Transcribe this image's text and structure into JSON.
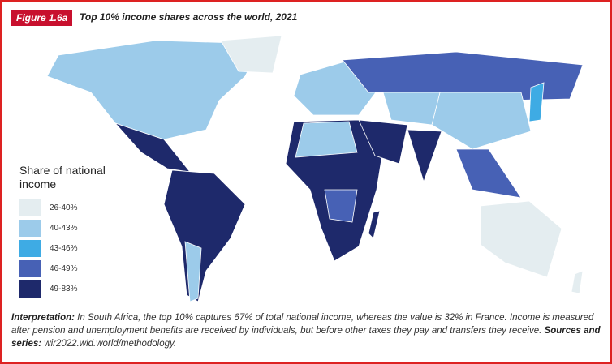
{
  "figure_label": "Figure 1.6a",
  "title": "Top 10% income shares across the world, 2021",
  "legend": {
    "title": "Share of national income",
    "items": [
      {
        "label": "26-40%",
        "color": "#e4edf0"
      },
      {
        "label": "40-43%",
        "color": "#9ccbea"
      },
      {
        "label": "43-46%",
        "color": "#3eabe4"
      },
      {
        "label": "46-49%",
        "color": "#4761b5"
      },
      {
        "label": "49-83%",
        "color": "#1e296b"
      }
    ]
  },
  "note": {
    "interpretation_label": "Interpretation:",
    "interpretation_text": "In South Africa, the top 10% captures 67% of total national income, whereas the value is 32% in France. Income is measured after pension and unemployment benefits are received by individuals, but before other taxes they pay and transfers they receive.",
    "sources_label": "Sources and series:",
    "sources_text": "wir2022.wid.world/methodology."
  }
}
